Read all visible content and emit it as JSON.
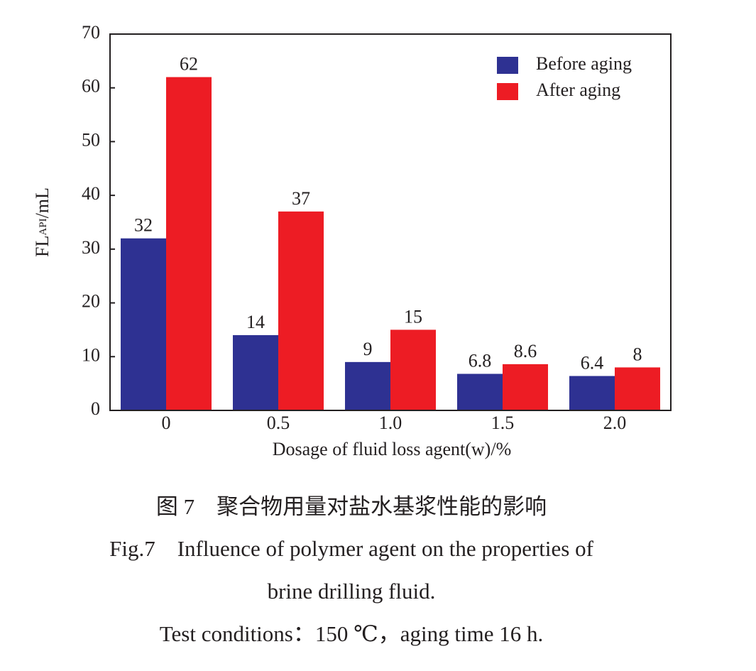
{
  "chart_data": {
    "type": "bar",
    "y_label": {
      "main": "FL",
      "sub": "API",
      "unit": "/mL"
    },
    "x_label": "Dosage of fluid loss agent(w)/%",
    "categories": [
      "0",
      "0.5",
      "1.0",
      "1.5",
      "2.0"
    ],
    "series": [
      {
        "name": "Before aging",
        "color": "#2e3192",
        "values": [
          32,
          14,
          9,
          6.8,
          6.4
        ]
      },
      {
        "name": "After aging",
        "color": "#ed1c24",
        "values": [
          62,
          37,
          15,
          8.6,
          8
        ]
      }
    ],
    "ylim": [
      0,
      70
    ],
    "yticks": [
      0,
      10,
      20,
      30,
      40,
      50,
      60,
      70
    ],
    "legend": "upper right"
  },
  "caption": {
    "cn": "图 7　聚合物用量对盐水基浆性能的影响",
    "en_line1": "Fig.7　Influence of polymer agent on the properties of",
    "en_line2": "brine drilling fluid.",
    "conditions": "Test conditions：150 ℃，aging time 16 h."
  }
}
